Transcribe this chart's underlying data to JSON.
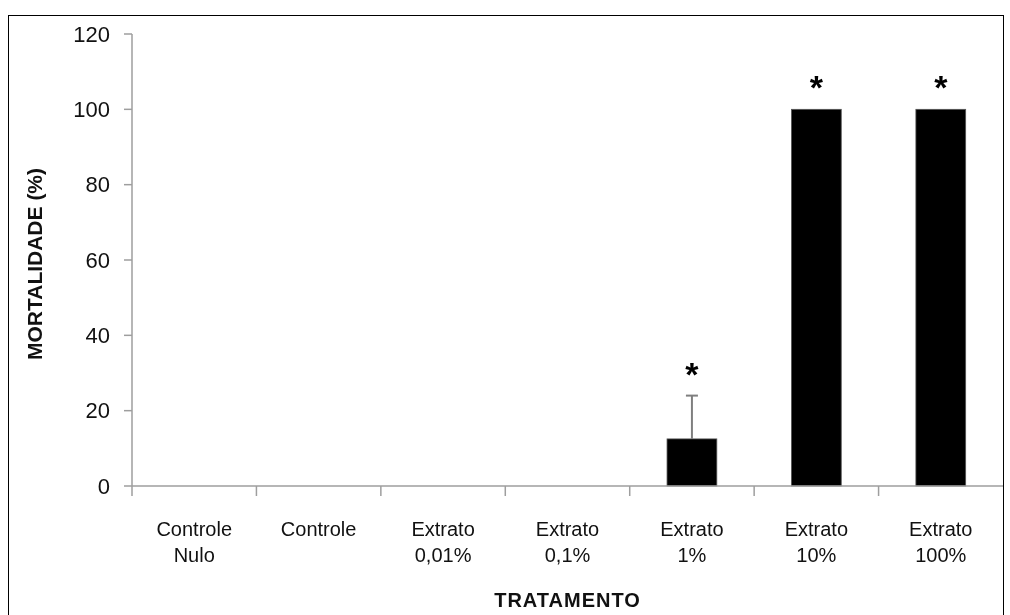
{
  "chart_data": {
    "type": "bar",
    "xlabel": "TRATAMENTO",
    "ylabel": "MORTALIDADE (%)",
    "categories": [
      "Controle Nulo",
      "Controle",
      "Extrato 0,01%",
      "Extrato 0,1%",
      "Extrato 1%",
      "Extrato 10%",
      "Extrato 100%"
    ],
    "values": [
      0,
      0,
      0,
      0,
      12.5,
      100,
      100
    ],
    "errors": [
      null,
      null,
      null,
      null,
      [
        12.5,
        24
      ],
      null,
      null
    ],
    "color": "#000000",
    "ylim": [
      0,
      120
    ],
    "yticks": [
      0,
      20,
      40,
      60,
      80,
      100,
      120
    ],
    "annotations": [
      {
        "text": "*",
        "x": "Extrato 1%",
        "y": 12.5
      },
      {
        "text": "*",
        "x": "Extrato 10%",
        "y": 100
      },
      {
        "text": "*",
        "x": "Extrato 100%",
        "y": 100
      }
    ]
  }
}
